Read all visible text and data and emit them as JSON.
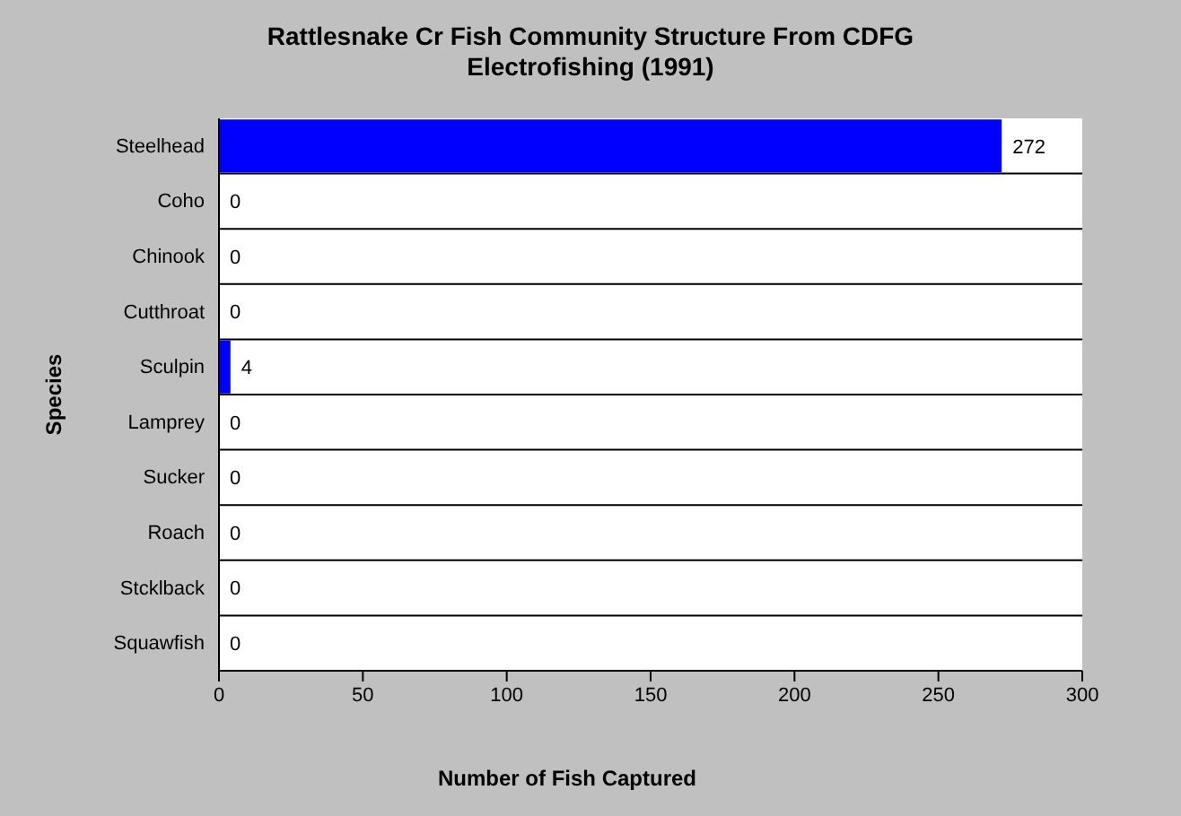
{
  "chart_data": {
    "type": "bar",
    "orientation": "horizontal",
    "title": "Rattlesnake Cr Fish Community Structure From CDFG Electrofishing (1991)",
    "xlabel": "Number of Fish Captured",
    "ylabel": "Species",
    "categories": [
      "Steelhead",
      "Coho",
      "Chinook",
      "Cutthroat",
      "Sculpin",
      "Lamprey",
      "Sucker",
      "Roach",
      "Stcklback",
      "Squawfish"
    ],
    "values": [
      272,
      0,
      0,
      0,
      4,
      0,
      0,
      0,
      0,
      0
    ],
    "color": "#0000ff",
    "xlim": [
      0,
      300
    ],
    "xticks": [
      0,
      50,
      100,
      150,
      200,
      250,
      300
    ],
    "grid": "y",
    "data_labels": true
  }
}
